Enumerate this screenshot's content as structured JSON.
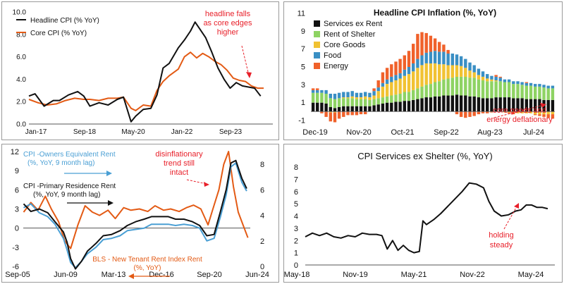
{
  "chart_data": [
    {
      "type": "line",
      "title": "",
      "xlabel": "",
      "ylabel": "",
      "x_ticks": [
        "Jan-17",
        "Sep-18",
        "May-20",
        "Jan-22",
        "Sep-23"
      ],
      "x_range": [
        2017.0,
        2025.0
      ],
      "ylim": [
        0,
        10
      ],
      "y_ticks": [
        "0.0",
        "2.0",
        "4.0",
        "6.0",
        "8.0",
        "10.0"
      ],
      "legend": [
        "Headline CPI (% YoY)",
        "Core CPI (% YoY)"
      ],
      "series": [
        {
          "name": "Headline CPI (% YoY)",
          "color": "#111111",
          "x": [
            2017.0,
            2017.2,
            2017.5,
            2017.8,
            2018.0,
            2018.3,
            2018.6,
            2018.8,
            2019.0,
            2019.3,
            2019.6,
            2019.9,
            2020.1,
            2020.35,
            2020.5,
            2020.75,
            2021.0,
            2021.2,
            2021.4,
            2021.6,
            2021.9,
            2022.1,
            2022.3,
            2022.45,
            2022.6,
            2022.8,
            2023.0,
            2023.2,
            2023.4,
            2023.6,
            2023.8,
            2024.0,
            2024.2,
            2024.4,
            2024.6
          ],
          "values": [
            2.5,
            2.7,
            1.6,
            2.1,
            2.1,
            2.6,
            2.9,
            2.5,
            1.6,
            1.9,
            1.7,
            2.2,
            2.4,
            0.2,
            0.7,
            1.3,
            1.4,
            2.6,
            5.0,
            5.4,
            6.8,
            7.5,
            8.3,
            9.1,
            8.5,
            7.7,
            6.4,
            5.0,
            4.0,
            3.2,
            3.7,
            3.4,
            3.3,
            3.2,
            2.5
          ]
        },
        {
          "name": "Core CPI (% YoY)",
          "color": "#e35a14",
          "x": [
            2017.0,
            2017.3,
            2017.6,
            2017.9,
            2018.2,
            2018.5,
            2018.8,
            2019.0,
            2019.3,
            2019.6,
            2019.9,
            2020.1,
            2020.35,
            2020.5,
            2020.75,
            2021.0,
            2021.2,
            2021.4,
            2021.6,
            2021.9,
            2022.1,
            2022.3,
            2022.5,
            2022.7,
            2022.9,
            2023.1,
            2023.3,
            2023.5,
            2023.7,
            2023.9,
            2024.1,
            2024.3,
            2024.5,
            2024.7
          ],
          "values": [
            2.2,
            1.9,
            1.7,
            1.8,
            2.1,
            2.3,
            2.2,
            2.2,
            2.1,
            2.3,
            2.3,
            2.4,
            1.4,
            1.2,
            1.7,
            1.6,
            3.0,
            3.8,
            4.3,
            4.9,
            6.0,
            6.4,
            5.9,
            6.3,
            6.0,
            5.6,
            5.3,
            4.8,
            4.1,
            3.9,
            3.8,
            3.4,
            3.2,
            3.2
          ]
        }
      ],
      "annotations": [
        {
          "text": "headline falls as core edges higher",
          "lines": [
            "headline falls",
            "as core edges",
            "higher"
          ]
        }
      ]
    },
    {
      "type": "bar",
      "stacked": true,
      "title": "Headline CPI Inflation (%, YoY)",
      "x_ticks": [
        "Dec-19",
        "Nov-20",
        "Oct-21",
        "Sep-22",
        "Aug-23",
        "Jul-24"
      ],
      "ylim": [
        -1,
        11
      ],
      "y_ticks": [
        "-1",
        "1",
        "3",
        "5",
        "7",
        "9",
        "11"
      ],
      "legend": [
        "Services ex Rent",
        "Rent of Shelter",
        "Core Goods",
        "Food",
        "Energy"
      ],
      "colors": [
        "#111111",
        "#8ed363",
        "#f1c232",
        "#3a8fc4",
        "#f0612a"
      ],
      "categories_count": 56,
      "series": [
        {
          "name": "Services ex Rent",
          "values": [
            1.0,
            1.0,
            1.0,
            0.9,
            0.5,
            0.4,
            0.5,
            0.6,
            0.6,
            0.6,
            0.6,
            0.6,
            0.6,
            0.6,
            0.7,
            0.8,
            0.9,
            1.0,
            1.0,
            1.1,
            1.1,
            1.2,
            1.2,
            1.3,
            1.4,
            1.5,
            1.6,
            1.6,
            1.7,
            1.7,
            1.8,
            1.8,
            1.8,
            1.9,
            1.8,
            1.8,
            1.7,
            1.7,
            1.6,
            1.5,
            1.5,
            1.5,
            1.6,
            1.6,
            1.6,
            1.6,
            1.5,
            1.5,
            1.5,
            1.4,
            1.4,
            1.4,
            1.4,
            1.3,
            1.3,
            1.3
          ]
        },
        {
          "name": "Rent of Shelter",
          "values": [
            1.1,
            1.1,
            1.1,
            1.1,
            1.0,
            1.0,
            1.0,
            0.9,
            0.9,
            0.9,
            0.8,
            0.8,
            0.8,
            0.7,
            0.7,
            0.7,
            0.7,
            0.7,
            0.8,
            0.8,
            0.9,
            1.0,
            1.0,
            1.1,
            1.2,
            1.3,
            1.4,
            1.5,
            1.6,
            1.7,
            1.8,
            1.9,
            2.0,
            2.0,
            2.1,
            2.1,
            2.1,
            2.1,
            2.0,
            2.0,
            1.9,
            1.9,
            1.8,
            1.8,
            1.7,
            1.7,
            1.6,
            1.6,
            1.5,
            1.5,
            1.5,
            1.4,
            1.4,
            1.4,
            1.3,
            1.3
          ]
        },
        {
          "name": "Core Goods",
          "values": [
            0.0,
            0.0,
            0.0,
            0.0,
            -0.1,
            -0.1,
            0.0,
            0.1,
            0.1,
            0.2,
            0.2,
            0.2,
            0.3,
            0.3,
            0.4,
            0.8,
            1.2,
            1.4,
            1.5,
            1.6,
            1.7,
            1.8,
            2.0,
            2.1,
            2.3,
            2.4,
            2.4,
            2.3,
            2.1,
            1.9,
            1.7,
            1.5,
            1.4,
            1.3,
            1.2,
            1.0,
            0.8,
            0.6,
            0.5,
            0.4,
            0.3,
            0.2,
            0.1,
            0.0,
            -0.1,
            -0.1,
            -0.1,
            -0.2,
            -0.2,
            -0.2,
            -0.2,
            -0.3,
            -0.3,
            -0.3,
            -0.3,
            -0.3
          ]
        },
        {
          "name": "Food",
          "values": [
            0.3,
            0.3,
            0.3,
            0.4,
            0.5,
            0.6,
            0.6,
            0.6,
            0.6,
            0.6,
            0.5,
            0.5,
            0.5,
            0.5,
            0.5,
            0.4,
            0.4,
            0.5,
            0.6,
            0.6,
            0.6,
            0.7,
            0.8,
            0.9,
            1.0,
            1.1,
            1.2,
            1.3,
            1.4,
            1.4,
            1.4,
            1.3,
            1.3,
            1.2,
            1.1,
            1.0,
            0.9,
            0.8,
            0.7,
            0.6,
            0.5,
            0.4,
            0.4,
            0.4,
            0.3,
            0.3,
            0.3,
            0.3,
            0.3,
            0.3,
            0.3,
            0.3,
            0.3,
            0.3,
            0.3,
            0.3
          ]
        },
        {
          "name": "Energy",
          "values": [
            0.2,
            0.2,
            -0.2,
            -0.6,
            -1.0,
            -1.1,
            -0.8,
            -0.6,
            -0.4,
            -0.4,
            -0.4,
            -0.3,
            -0.3,
            0.0,
            0.3,
            0.8,
            1.2,
            1.3,
            1.4,
            1.5,
            1.6,
            1.6,
            1.8,
            2.2,
            2.8,
            2.6,
            2.2,
            1.8,
            1.4,
            1.1,
            0.8,
            0.4,
            0.0,
            -0.3,
            -0.6,
            -0.7,
            -0.6,
            -0.5,
            -0.3,
            -0.2,
            -0.2,
            -0.1,
            0.2,
            0.1,
            0.0,
            -0.1,
            -0.2,
            0.0,
            0.0,
            0.1,
            0.0,
            -0.1,
            -0.2,
            -0.3,
            -0.4,
            -0.5
          ]
        }
      ],
      "annotations": [
        {
          "text": "core goods and energy deflationary",
          "lines": [
            "core goods and",
            "energy deflationary"
          ]
        }
      ]
    },
    {
      "type": "line",
      "dual_axis": true,
      "title": "",
      "x_ticks": [
        "Sep-05",
        "Jun-09",
        "Mar-13",
        "Dec-16",
        "Sep-20",
        "Jun-24"
      ],
      "x_range": [
        2005.67,
        2024.5
      ],
      "ylim_left": [
        -6,
        12
      ],
      "ylim_right": [
        0,
        9
      ],
      "y_ticks_left": [
        "-6",
        "-3",
        "0",
        "3",
        "6",
        "9",
        "12"
      ],
      "y_ticks_right": [
        "0",
        "2",
        "4",
        "6",
        "8"
      ],
      "series": [
        {
          "name": "CPI -Owners Equivalent Rent (%, YoY, 9 month lag)",
          "axis": "right",
          "color": "#4a9fd4",
          "x": [
            2005.7,
            2006.3,
            2007.0,
            2007.7,
            2008.3,
            2009.0,
            2009.3,
            2009.6,
            2010.0,
            2010.5,
            2011.0,
            2011.7,
            2012.3,
            2013.0,
            2013.7,
            2014.3,
            2015.0,
            2015.7,
            2016.3,
            2017.0,
            2017.7,
            2018.3,
            2019.0,
            2019.7,
            2020.3,
            2020.9,
            2021.5,
            2022.0,
            2022.5,
            2022.9,
            2023.3,
            2023.8,
            2024.2
          ],
          "values": [
            4.6,
            4.9,
            4.2,
            3.9,
            3.3,
            2.2,
            1.3,
            0.3,
            -0.1,
            0.4,
            1.0,
            1.5,
            2.1,
            2.2,
            2.4,
            2.8,
            2.9,
            3.0,
            3.3,
            3.3,
            3.3,
            3.2,
            3.3,
            3.2,
            3.0,
            2.0,
            2.2,
            3.8,
            5.6,
            7.8,
            8.1,
            6.6,
            5.9
          ]
        },
        {
          "name": "CPI -Primary Residence Rent (%, YoY, 9 month lag)",
          "axis": "right",
          "color": "#111111",
          "x": [
            2005.7,
            2006.3,
            2007.0,
            2007.7,
            2008.3,
            2009.0,
            2009.3,
            2009.6,
            2010.0,
            2010.5,
            2011.0,
            2011.7,
            2012.3,
            2013.0,
            2013.7,
            2014.3,
            2015.0,
            2015.7,
            2016.3,
            2017.0,
            2017.7,
            2018.3,
            2019.0,
            2019.7,
            2020.3,
            2020.9,
            2021.5,
            2022.0,
            2022.5,
            2022.9,
            2023.3,
            2023.8,
            2024.2
          ],
          "values": [
            4.9,
            4.3,
            4.5,
            4.2,
            3.5,
            2.7,
            1.9,
            0.6,
            -0.2,
            0.4,
            1.2,
            1.8,
            2.4,
            2.5,
            2.8,
            3.2,
            3.5,
            3.7,
            3.9,
            3.9,
            3.9,
            3.7,
            3.7,
            3.5,
            3.2,
            2.4,
            2.5,
            4.2,
            6.0,
            8.1,
            8.3,
            6.9,
            6.1
          ]
        },
        {
          "name": "BLS - New Tenant Rent Index Rent (%, YoY)",
          "axis": "left",
          "color": "#e35a14",
          "x": [
            2005.7,
            2006.3,
            2006.9,
            2007.5,
            2008.0,
            2008.6,
            2009.1,
            2009.6,
            2010.2,
            2010.8,
            2011.4,
            2012.0,
            2012.7,
            2013.3,
            2014.0,
            2014.6,
            2015.3,
            2016.0,
            2016.6,
            2017.3,
            2017.9,
            2018.6,
            2019.2,
            2019.8,
            2020.4,
            2021.0,
            2021.4,
            2021.9,
            2022.3,
            2022.7,
            2023.1,
            2023.5,
            2023.9,
            2024.3
          ],
          "values": [
            2.5,
            4.0,
            2.8,
            5.0,
            3.0,
            1.0,
            -2.0,
            -3.2,
            0.5,
            3.5,
            2.5,
            2.0,
            2.8,
            1.5,
            3.2,
            2.8,
            3.0,
            2.6,
            3.5,
            2.8,
            3.0,
            2.6,
            3.2,
            3.6,
            3.0,
            0.5,
            3.0,
            6.0,
            10.0,
            12.0,
            6.5,
            2.5,
            0.5,
            -1.5
          ]
        }
      ],
      "annotations": [
        {
          "text": "disinflationary trend still intact",
          "lines": [
            "disinflationary",
            "trend still",
            "intact"
          ]
        },
        {
          "text": "CPI -Owners Equivalent Rent (%, YoY, 9 month lag)",
          "lines": [
            "CPI -Owners Equivalent Rent",
            "(%, YoY, 9 month lag)"
          ]
        },
        {
          "text": "CPI -Primary Residence Rent (%, YoY, 9 month lag)",
          "lines": [
            "CPI -Primary Residence Rent",
            "(%, YoY, 9 month lag)"
          ]
        },
        {
          "text": "BLS - New Tenant Rent Index Rent (%, YoY)",
          "lines": [
            "BLS - New Tenant Rent Index Rent",
            "(%, YoY)"
          ]
        }
      ]
    },
    {
      "type": "line",
      "title": "CPI Services ex Shelter (%, YoY)",
      "x_ticks": [
        "May-18",
        "Nov-19",
        "May-21",
        "Nov-22",
        "May-24"
      ],
      "x_range": [
        2018.0,
        2025.0
      ],
      "ylim": [
        0,
        8
      ],
      "y_ticks": [
        "0",
        "1",
        "2",
        "3",
        "4",
        "5",
        "6",
        "7",
        "8"
      ],
      "series": [
        {
          "name": "CPI Services ex Shelter (%, YoY)",
          "color": "#111111",
          "x": [
            2018.0,
            2018.2,
            2018.4,
            2018.6,
            2018.8,
            2019.0,
            2019.2,
            2019.4,
            2019.6,
            2019.8,
            2020.0,
            2020.15,
            2020.3,
            2020.45,
            2020.6,
            2020.75,
            2020.9,
            2021.05,
            2021.2,
            2021.3,
            2021.4,
            2021.6,
            2021.8,
            2022.0,
            2022.2,
            2022.4,
            2022.6,
            2022.8,
            2023.0,
            2023.15,
            2023.3,
            2023.5,
            2023.7,
            2023.9,
            2024.05,
            2024.2,
            2024.35,
            2024.5,
            2024.65,
            2024.8
          ],
          "values": [
            2.3,
            2.6,
            2.4,
            2.6,
            2.3,
            2.2,
            2.4,
            2.3,
            2.6,
            2.5,
            2.5,
            2.4,
            1.3,
            2.0,
            1.2,
            1.6,
            1.2,
            1.0,
            1.1,
            3.6,
            3.3,
            3.7,
            4.2,
            4.8,
            5.4,
            6.0,
            6.7,
            6.6,
            6.3,
            5.2,
            4.4,
            4.0,
            4.1,
            4.4,
            4.5,
            4.9,
            4.9,
            4.7,
            4.7,
            4.6
          ]
        }
      ],
      "annotations": [
        {
          "text": "holding steady",
          "lines": [
            "holding",
            "steady"
          ]
        }
      ]
    }
  ]
}
